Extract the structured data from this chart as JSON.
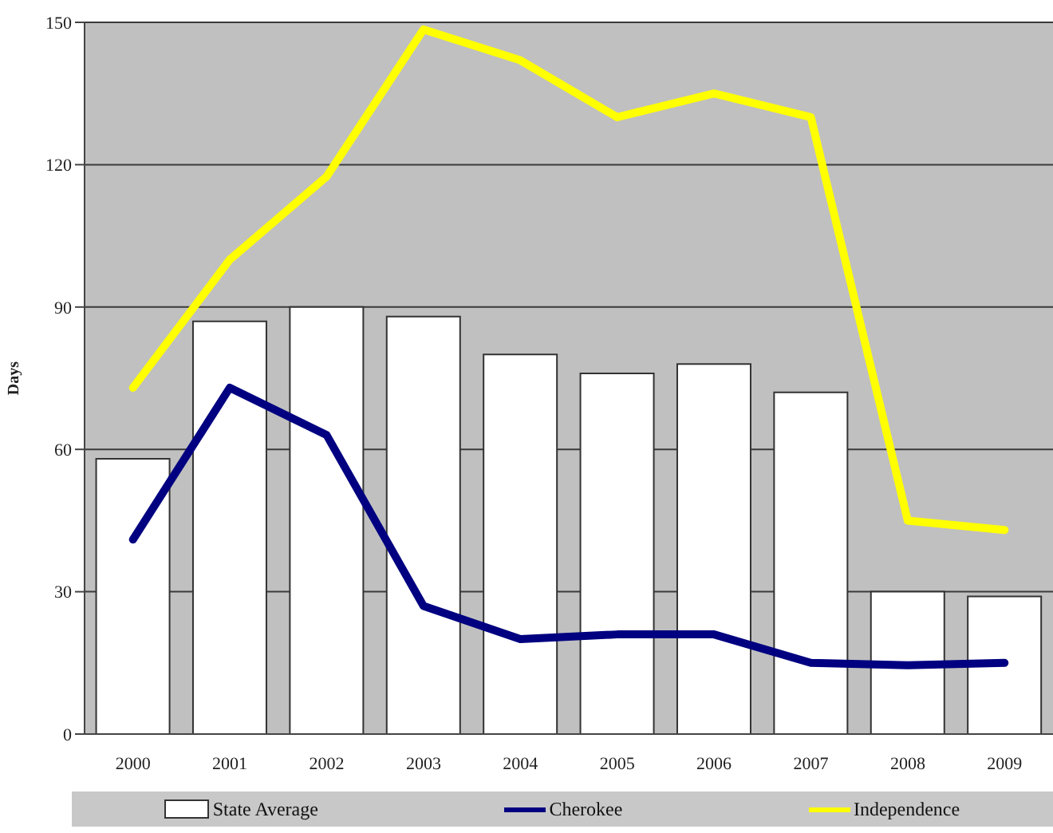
{
  "chart_data": {
    "type": "bar",
    "ylabel": "Days",
    "categories": [
      "2000",
      "2001",
      "2002",
      "2003",
      "2004",
      "2005",
      "2006",
      "2007",
      "2008",
      "2009"
    ],
    "series": [
      {
        "name": "State Average",
        "color": "#ffffff",
        "values": [
          58,
          87,
          90,
          88,
          80,
          76,
          78,
          72,
          30,
          29
        ]
      },
      {
        "name": "Cherokee",
        "type": "line",
        "color": "#000080",
        "values": [
          41,
          73,
          63,
          27,
          20,
          21,
          21,
          15,
          14.5,
          15
        ]
      },
      {
        "name": "Independence",
        "type": "line",
        "color": "#ffff00",
        "values": [
          73,
          100,
          117.5,
          148.5,
          142,
          130,
          135,
          130,
          45,
          43
        ]
      }
    ],
    "ylim": [
      0,
      150
    ],
    "yticks": [
      0,
      30,
      60,
      90,
      120,
      150
    ],
    "grid": "y",
    "legend": "bottom",
    "marker": "none"
  }
}
